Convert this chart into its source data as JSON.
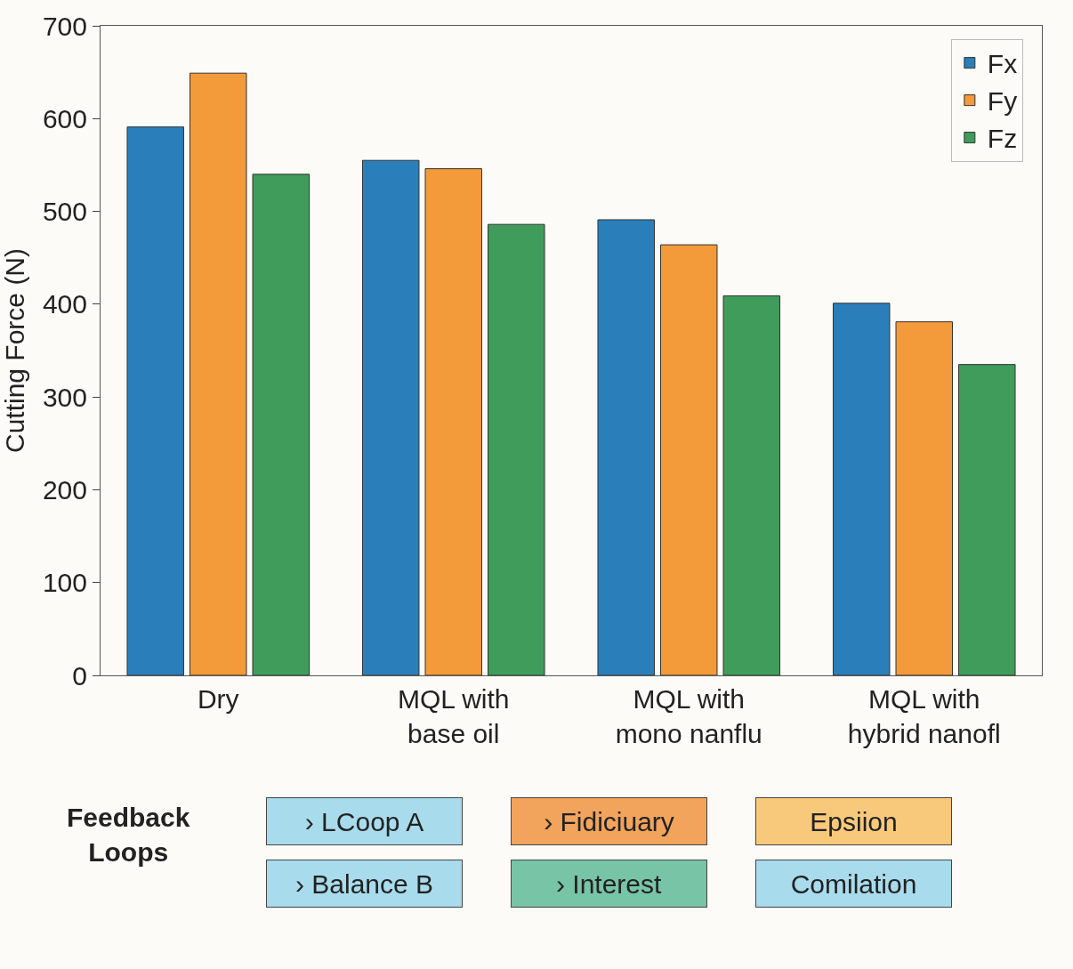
{
  "chart_data": {
    "type": "bar",
    "ylabel": "Cutting Force (N)",
    "categories": [
      "Dry",
      "MQL with\nbase oil",
      "MQL with\nmono nanflu",
      "MQL with\nhybrid nanofl"
    ],
    "series": [
      {
        "name": "Fx",
        "color": "#2a7fba",
        "values": [
          591,
          555,
          491,
          401
        ]
      },
      {
        "name": "Fy",
        "color": "#f39a3a",
        "values": [
          649,
          546,
          464,
          381
        ]
      },
      {
        "name": "Fz",
        "color": "#3f9c5a",
        "values": [
          540,
          486,
          409,
          335
        ]
      }
    ],
    "ylim": [
      0,
      700
    ],
    "yticks": [
      0,
      100,
      200,
      300,
      400,
      500,
      600,
      700
    ],
    "grid": false,
    "legend": "top right",
    "annotations": [
      "Feedback\nLoops",
      "› LCoop A",
      "› Balance B",
      "› Fidiciuary",
      "› Interest",
      "Epsiion",
      "Comilation"
    ]
  }
}
